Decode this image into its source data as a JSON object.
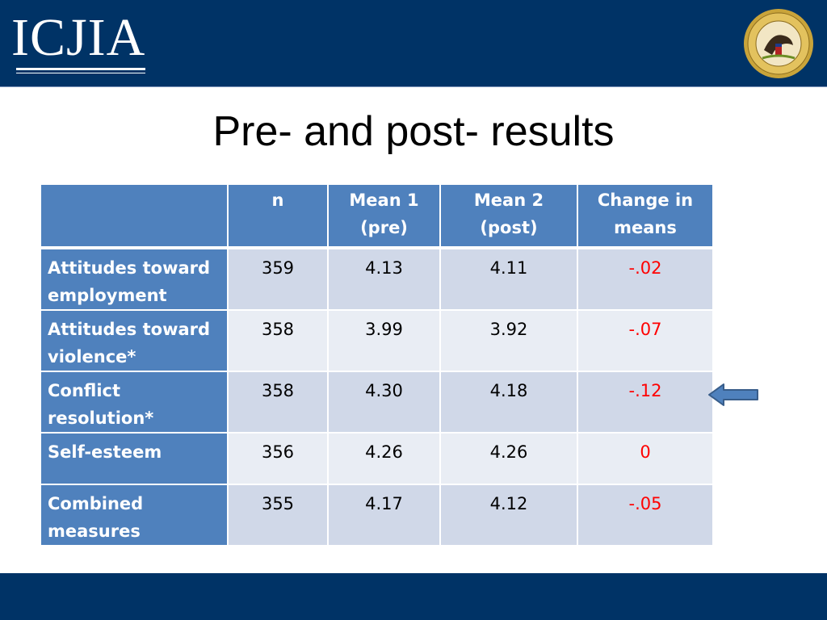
{
  "header": {
    "logo_text": "ICJIA",
    "seal_icon": "illinois-state-seal-icon",
    "colors": {
      "banner": "#003366",
      "header_cell": "#4f81bd",
      "row_odd": "#d0d8e8",
      "row_even": "#e9edf4",
      "change_text": "#ff0000"
    }
  },
  "slide": {
    "title": "Pre- and post- results"
  },
  "table": {
    "columns": [
      {
        "line1": "",
        "line2": ""
      },
      {
        "line1": "n",
        "line2": ""
      },
      {
        "line1": "Mean 1",
        "line2": "(pre)"
      },
      {
        "line1": "Mean 2",
        "line2": "(post)"
      },
      {
        "line1": "Change in",
        "line2": "means"
      }
    ],
    "rows": [
      {
        "label_line1": "Attitudes toward",
        "label_line2": "employment",
        "n": "359",
        "mean1": "4.13",
        "mean2": "4.11",
        "change": "-.02"
      },
      {
        "label_line1": "Attitudes toward",
        "label_line2": "violence*",
        "n": "358",
        "mean1": "3.99",
        "mean2": "3.92",
        "change": "-.07"
      },
      {
        "label_line1": "Conflict",
        "label_line2": "resolution*",
        "n": "358",
        "mean1": "4.30",
        "mean2": "4.18",
        "change": "-.12"
      },
      {
        "label_line1": "Self-esteem",
        "label_line2": "",
        "n": "356",
        "mean1": "4.26",
        "mean2": "4.26",
        "change": "0"
      },
      {
        "label_line1": "Combined",
        "label_line2": "measures",
        "n": "355",
        "mean1": "4.17",
        "mean2": "4.12",
        "change": "-.05"
      }
    ]
  },
  "annotation": {
    "arrow_icon": "left-arrow-icon",
    "arrow_color": "#4f81bd"
  }
}
